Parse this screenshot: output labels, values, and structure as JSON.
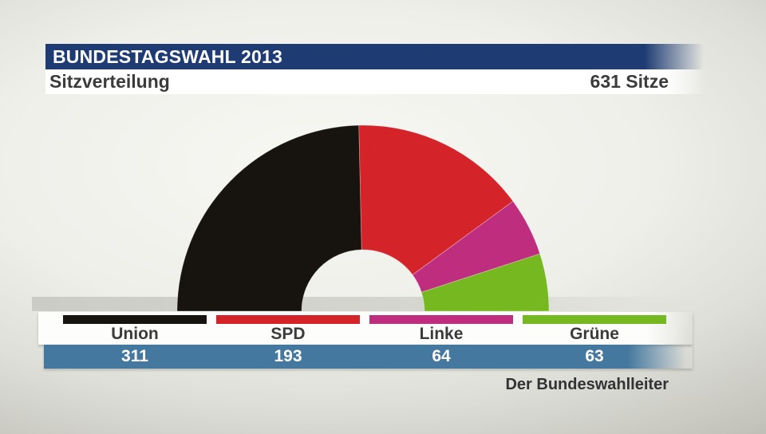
{
  "header": {
    "title": "BUNDESTAGSWAHL 2013",
    "subtitle_left": "Sitzverteilung",
    "subtitle_right": "631 Sitze"
  },
  "footer": {
    "source": "Der Bundeswahlleiter"
  },
  "colors": {
    "header_bar": "#1e3c73",
    "values_bar": "#45789f",
    "dark_text": "#3b3b3b"
  },
  "chart_data": {
    "type": "pie",
    "variant": "half-donut",
    "title": "Sitzverteilung",
    "total": 631,
    "total_label": "631 Sitze",
    "categories": [
      "Union",
      "SPD",
      "Linke",
      "Grüne"
    ],
    "values": [
      311,
      193,
      64,
      63
    ],
    "colors": [
      "#17130f",
      "#d5232a",
      "#be2d7e",
      "#76b81f"
    ],
    "start_angle_deg": 180,
    "end_angle_deg": 0,
    "inner_radius_ratio": 0.33,
    "legend_position": "bottom"
  }
}
